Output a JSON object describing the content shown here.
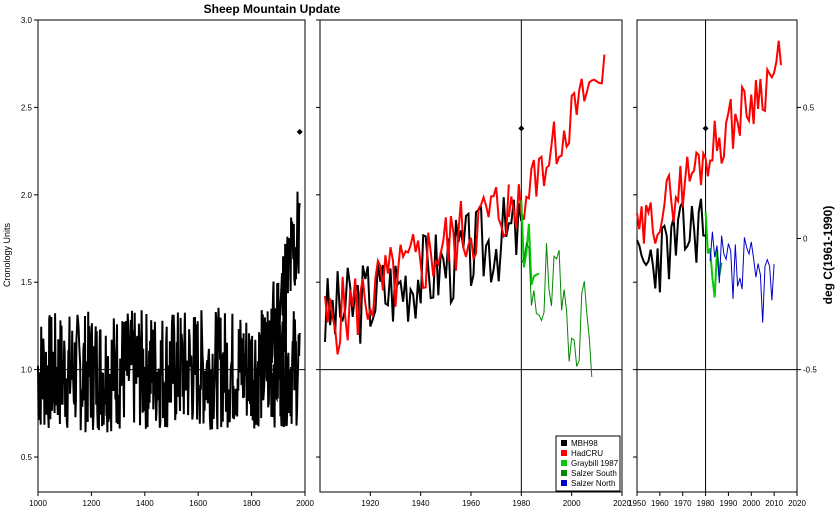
{
  "chart_data": {
    "type": "line",
    "title": "Sheep Mountain Update",
    "ylabel_left": "Cronology Units",
    "ylabel_right": "deg C(1961-1990)",
    "colors": {
      "MBH98": "#000000",
      "HadCRU": "#ff0000",
      "Graybill 1987": "#00cc00",
      "Salzer South": "#008800",
      "Salzer North": "#0000cc"
    },
    "legend": {
      "position": "bottom-right of middle panel",
      "entries": [
        "MBH98",
        "HadCRU",
        "Graybill 1987",
        "Salzer South",
        "Salzer North"
      ]
    },
    "panels": [
      {
        "id": "left",
        "xlim": [
          1000,
          2000
        ],
        "ylim": [
          0.3,
          3.0
        ],
        "xticks": [
          "1000",
          "1200",
          "1400",
          "1600",
          "1800",
          "2000"
        ],
        "yticks": [
          "0.5",
          "1.0",
          "1.5",
          "2.0",
          "2.5",
          "3.0"
        ],
        "hline": 1.0,
        "series": [
          {
            "name": "MBH98",
            "color": "#000000",
            "noise_seed": 7,
            "x_start": 1000,
            "x_end": 1980,
            "mean_start": 0.98,
            "mean_end": 1.02,
            "amplitude": 0.35
          },
          {
            "name": "MBH98",
            "color": "#000000",
            "noise_seed": 11,
            "x_start": 1860,
            "x_end": 1980,
            "mean_start": 1.05,
            "mean_end": 1.8,
            "amplitude": 0.35
          }
        ],
        "points": [
          {
            "x": 1980,
            "y": 2.36
          }
        ]
      },
      {
        "id": "middle",
        "xlim": [
          1900,
          2020
        ],
        "ylim": [
          0.3,
          3.0
        ],
        "xticks": [
          "1920",
          "1940",
          "1960",
          "1980",
          "2000",
          "2020"
        ],
        "yticks": [],
        "hline": 1.0,
        "vline": 1980,
        "series": [
          {
            "name": "MBH98",
            "color": "#000000",
            "noise_seed": 3,
            "x_start": 1902,
            "x_end": 1980,
            "mean_start": 1.3,
            "mean_end": 1.8,
            "amplitude": 0.25
          },
          {
            "name": "HadCRU",
            "color": "#ff0000",
            "noise_seed": 5,
            "x_start": 1902,
            "x_end": 1975,
            "mean_start": 1.25,
            "mean_end": 1.95,
            "amplitude": 0.22
          },
          {
            "name": "HadCRU",
            "color": "#ff0000",
            "noise_seed": 13,
            "x_start": 1975,
            "x_end": 2013,
            "mean_start": 1.85,
            "mean_end": 2.75,
            "amplitude": 0.15
          },
          {
            "name": "Graybill 1987",
            "color": "#00cc00",
            "noise_seed": 17,
            "x_start": 1980,
            "x_end": 1987,
            "mean_start": 1.8,
            "mean_end": 1.5,
            "amplitude": 0.2
          },
          {
            "name": "Salzer South",
            "color": "#008800",
            "noise_seed": 19,
            "x_start": 1980,
            "x_end": 2008,
            "mean_start": 1.55,
            "mean_end": 1.25,
            "amplitude": 0.3
          }
        ],
        "points": [
          {
            "x": 1980,
            "y": 2.38
          }
        ]
      },
      {
        "id": "right",
        "xlim": [
          1950,
          2020
        ],
        "ylim": [
          0.3,
          3.0
        ],
        "xticks": [
          "1950",
          "1960",
          "1970",
          "1980",
          "1990",
          "2000",
          "2010",
          "2020"
        ],
        "yticks_right": [
          "-0.5",
          "0",
          "0.5"
        ],
        "hline": 1.0,
        "vline": 1980,
        "series": [
          {
            "name": "MBH98",
            "color": "#000000",
            "noise_seed": 23,
            "x_start": 1950,
            "x_end": 1980,
            "mean_start": 1.55,
            "mean_end": 1.85,
            "amplitude": 0.22
          },
          {
            "name": "HadCRU",
            "color": "#ff0000",
            "noise_seed": 29,
            "x_start": 1950,
            "x_end": 2013,
            "mean_start": 1.75,
            "mean_end": 2.75,
            "amplitude": 0.16
          },
          {
            "name": "Graybill 1987",
            "color": "#00cc00",
            "noise_seed": 31,
            "x_start": 1980,
            "x_end": 1987,
            "mean_start": 1.85,
            "mean_end": 1.45,
            "amplitude": 0.22
          },
          {
            "name": "Salzer North",
            "color": "#0000cc",
            "noise_seed": 37,
            "x_start": 1982,
            "x_end": 2010,
            "mean_start": 1.55,
            "mean_end": 1.5,
            "amplitude": 0.25
          }
        ],
        "points": [
          {
            "x": 1980,
            "y": 2.38
          }
        ]
      }
    ]
  }
}
